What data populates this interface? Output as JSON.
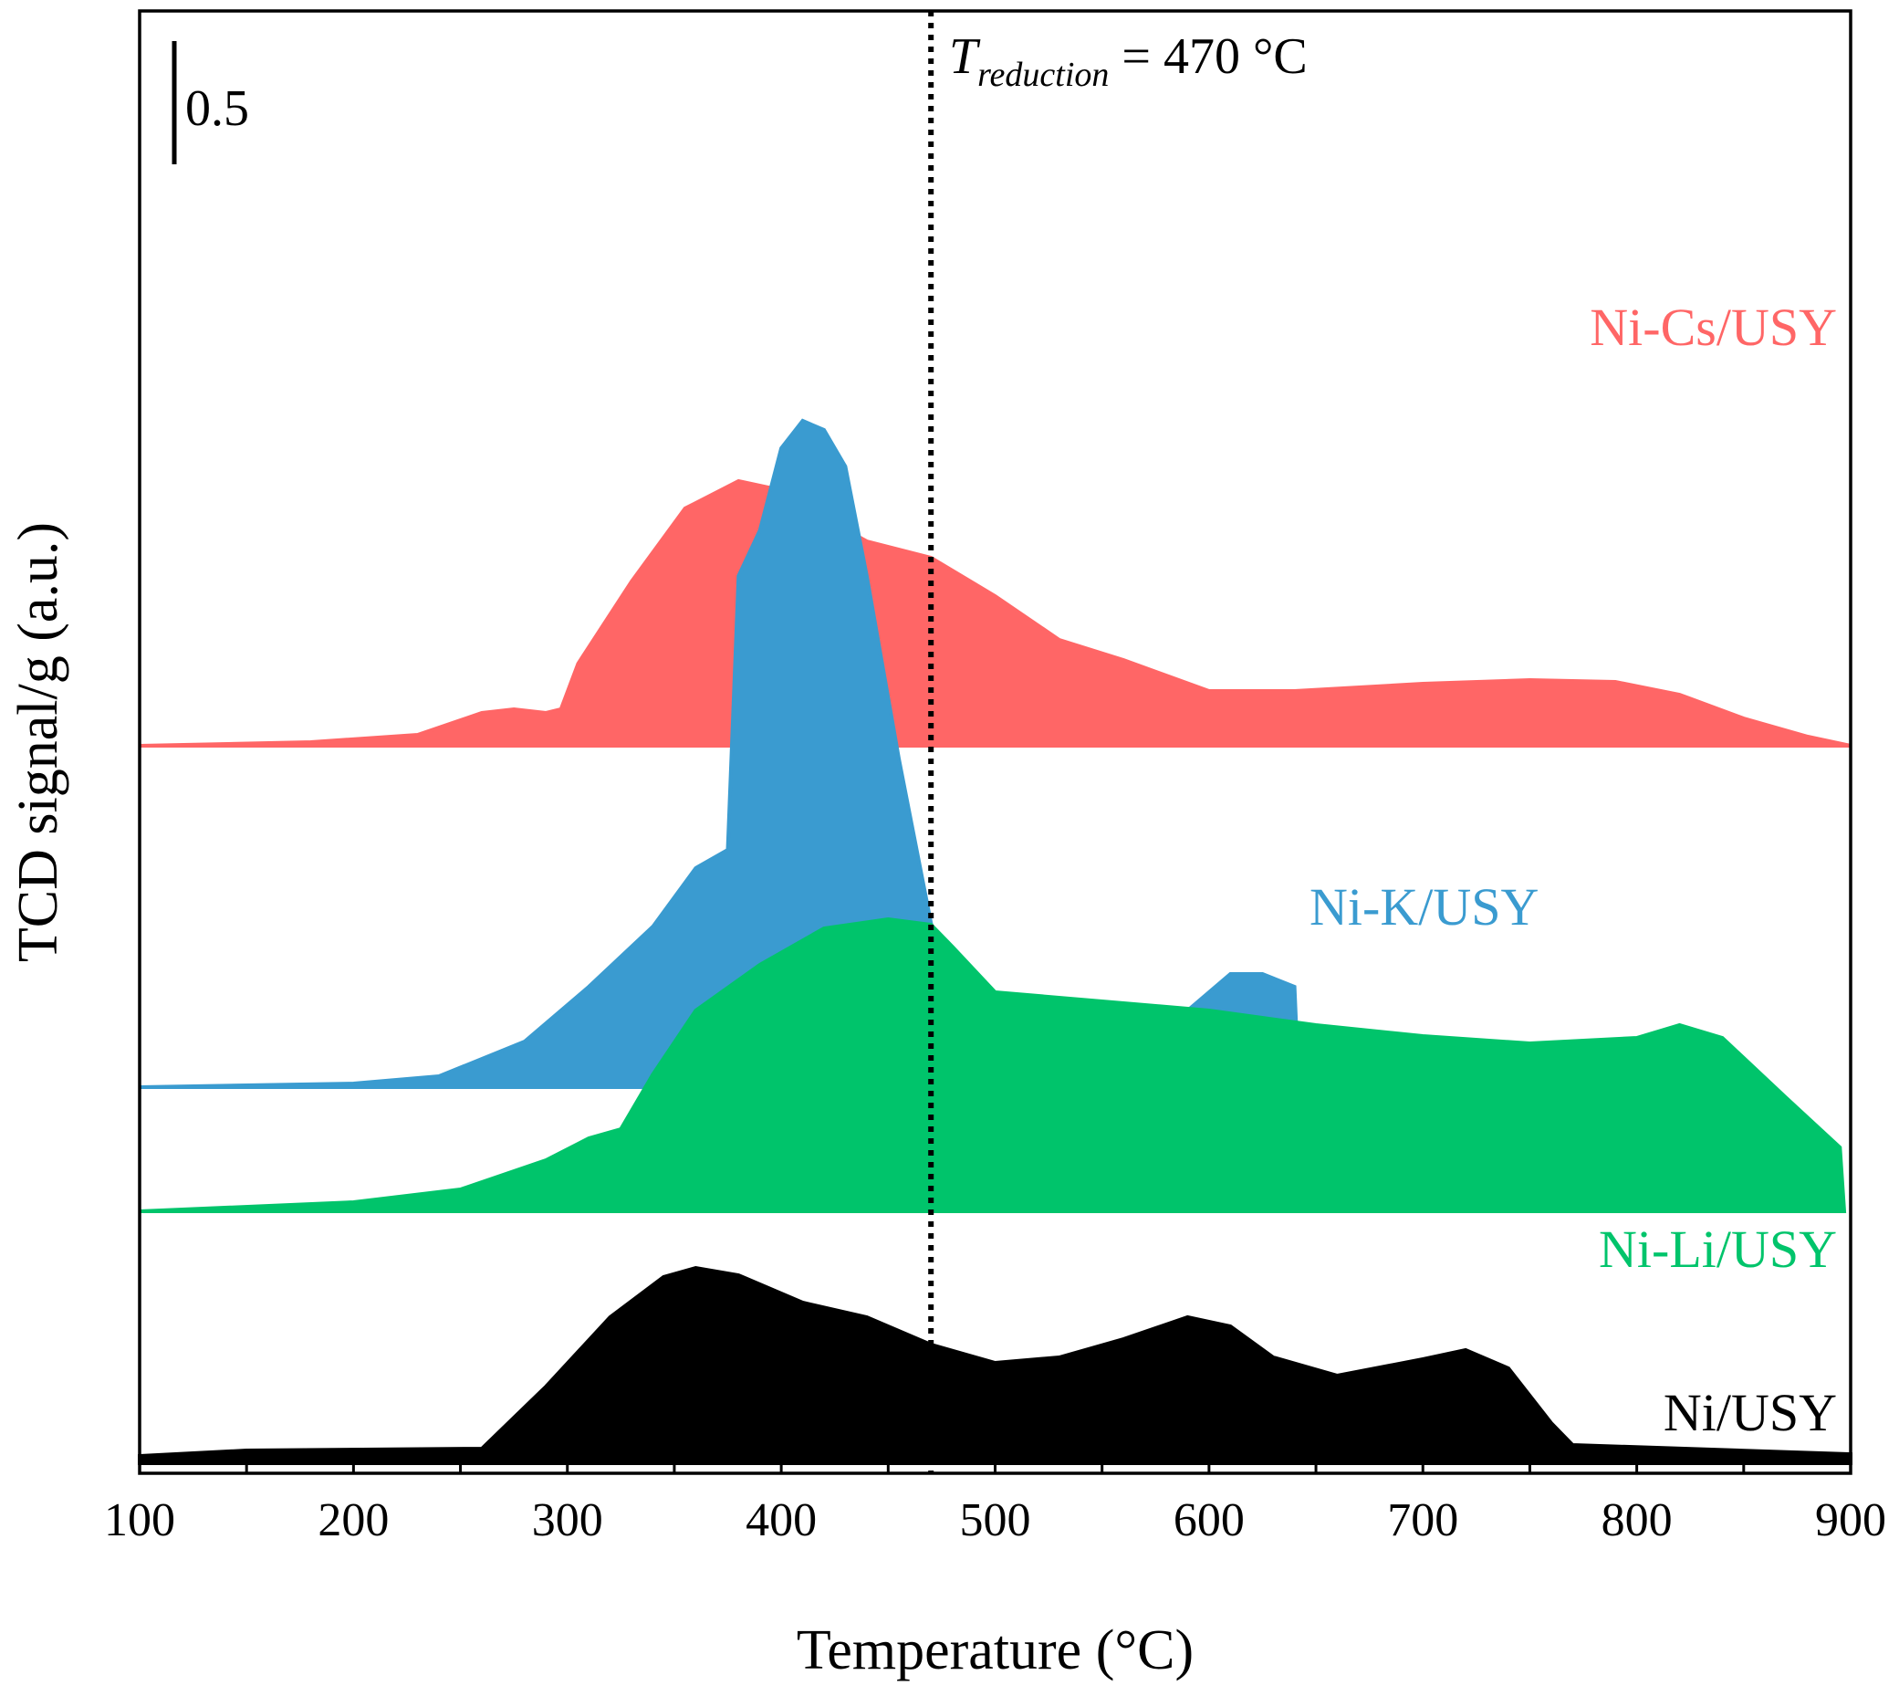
{
  "chart_data": {
    "type": "area",
    "title": "",
    "xlabel": "Temperature (°C)",
    "ylabel": "TCD signal/g (a.u.)",
    "xlim": [
      100,
      900
    ],
    "x_ticks": [
      100,
      200,
      300,
      400,
      500,
      600,
      700,
      800,
      900
    ],
    "scale_bar": {
      "label": "0.5",
      "value": 0.5
    },
    "reference_line": {
      "x": 470,
      "label_main": "T",
      "label_sub": "reduction",
      "label_rest": " = 470 °C",
      "style": "dotted"
    },
    "series": [
      {
        "name": "Ni-Cs/USY",
        "color": "#ff6666",
        "baseline_offset": 3.93,
        "points": [
          [
            100,
            0
          ],
          [
            180,
            0.02
          ],
          [
            230,
            0.06
          ],
          [
            260,
            0.18
          ],
          [
            275,
            0.2
          ],
          [
            290,
            0.18
          ],
          [
            297,
            0.2
          ],
          [
            305,
            0.45
          ],
          [
            330,
            0.9
          ],
          [
            355,
            1.3
          ],
          [
            380,
            1.45
          ],
          [
            400,
            1.4
          ],
          [
            420,
            1.25
          ],
          [
            440,
            1.12
          ],
          [
            470,
            1.03
          ],
          [
            500,
            0.82
          ],
          [
            530,
            0.58
          ],
          [
            560,
            0.47
          ],
          [
            600,
            0.3
          ],
          [
            640,
            0.3
          ],
          [
            700,
            0.34
          ],
          [
            750,
            0.36
          ],
          [
            790,
            0.35
          ],
          [
            820,
            0.28
          ],
          [
            850,
            0.15
          ],
          [
            880,
            0.05
          ],
          [
            900,
            0
          ]
        ]
      },
      {
        "name": "Ni-K/USY",
        "color": "#3a9bd0",
        "baseline_offset": 2.06,
        "points": [
          [
            100,
            0
          ],
          [
            200,
            0.02
          ],
          [
            240,
            0.06
          ],
          [
            280,
            0.25
          ],
          [
            310,
            0.55
          ],
          [
            340,
            0.88
          ],
          [
            360,
            1.2
          ],
          [
            375,
            1.3
          ],
          [
            380,
            2.8
          ],
          [
            390,
            3.05
          ],
          [
            400,
            3.5
          ],
          [
            410,
            3.65
          ],
          [
            420,
            3.6
          ],
          [
            430,
            3.4
          ],
          [
            440,
            2.8
          ],
          [
            455,
            1.8
          ],
          [
            470,
            0.9
          ],
          [
            480,
            0.45
          ],
          [
            500,
            0.28
          ],
          [
            530,
            0.25
          ],
          [
            560,
            0.27
          ],
          [
            590,
            0.42
          ],
          [
            610,
            0.62
          ],
          [
            625,
            0.62
          ],
          [
            640,
            0.55
          ],
          [
            642,
            0
          ]
        ]
      },
      {
        "name": "Ni-Li/USY",
        "color": "#00c46b",
        "baseline_offset": 1.38,
        "points": [
          [
            100,
            0
          ],
          [
            200,
            0.05
          ],
          [
            250,
            0.12
          ],
          [
            290,
            0.28
          ],
          [
            310,
            0.4
          ],
          [
            325,
            0.45
          ],
          [
            340,
            0.75
          ],
          [
            360,
            1.1
          ],
          [
            390,
            1.35
          ],
          [
            420,
            1.55
          ],
          [
            450,
            1.6
          ],
          [
            470,
            1.57
          ],
          [
            480,
            1.45
          ],
          [
            500,
            1.2
          ],
          [
            550,
            1.15
          ],
          [
            600,
            1.1
          ],
          [
            650,
            1.02
          ],
          [
            700,
            0.96
          ],
          [
            750,
            0.92
          ],
          [
            800,
            0.95
          ],
          [
            820,
            1.02
          ],
          [
            840,
            0.95
          ],
          [
            870,
            0.62
          ],
          [
            895,
            0.35
          ],
          [
            897,
            0
          ]
        ]
      },
      {
        "name": "Ni/USY",
        "color": "#000000",
        "baseline_offset": 0,
        "points": [
          [
            100,
            0.04
          ],
          [
            150,
            0.07
          ],
          [
            260,
            0.08
          ],
          [
            290,
            0.42
          ],
          [
            320,
            0.8
          ],
          [
            345,
            1.02
          ],
          [
            360,
            1.07
          ],
          [
            380,
            1.03
          ],
          [
            410,
            0.88
          ],
          [
            440,
            0.8
          ],
          [
            470,
            0.65
          ],
          [
            500,
            0.55
          ],
          [
            530,
            0.58
          ],
          [
            560,
            0.68
          ],
          [
            590,
            0.8
          ],
          [
            610,
            0.75
          ],
          [
            630,
            0.58
          ],
          [
            660,
            0.48
          ],
          [
            700,
            0.57
          ],
          [
            720,
            0.62
          ],
          [
            740,
            0.52
          ],
          [
            760,
            0.22
          ],
          [
            770,
            0.1
          ],
          [
            900,
            0.05
          ]
        ]
      }
    ]
  }
}
